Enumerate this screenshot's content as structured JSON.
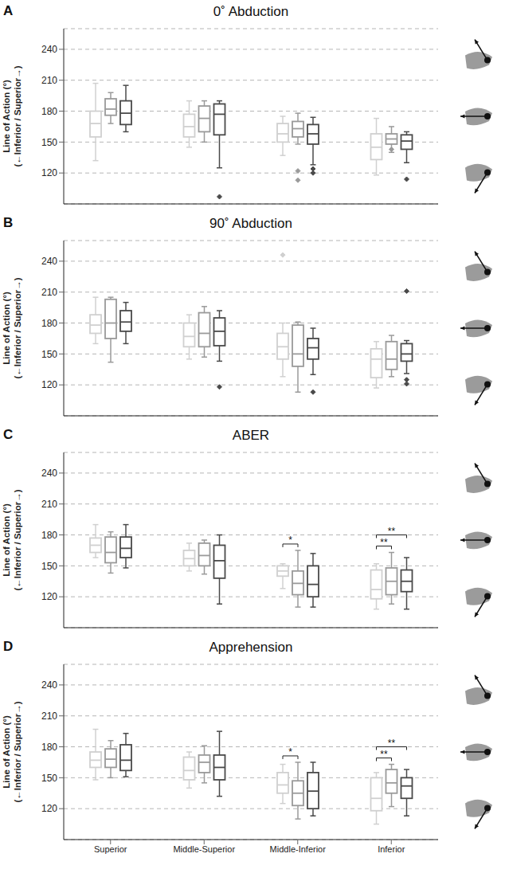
{
  "chart_data": [
    {
      "type": "box",
      "panel": "A",
      "title": "0˚ Abduction",
      "ylabel": [
        "Line of Action (°)",
        "(←Inferior / Superior→)"
      ],
      "categories": [
        "Superior",
        "Middle-Superior",
        "Middle-Inferior",
        "Inferior"
      ],
      "ylim": [
        90,
        260
      ],
      "yticks": [
        120,
        150,
        180,
        210,
        240
      ],
      "grid": true,
      "tick_labels": "y",
      "series": [
        {
          "color": "#d0d0d0",
          "values": [
            {
              "min": 132,
              "q1": 155,
              "median": 168,
              "q3": 180,
              "max": 207,
              "outliers": []
            },
            {
              "min": 145,
              "q1": 155,
              "median": 165,
              "q3": 177,
              "max": 190,
              "outliers": []
            },
            {
              "min": 137,
              "q1": 150,
              "median": 158,
              "q3": 168,
              "max": 175,
              "outliers": []
            },
            {
              "min": 118,
              "q1": 133,
              "median": 145,
              "q3": 158,
              "max": 173,
              "outliers": []
            }
          ]
        },
        {
          "color": "#9a9a9a",
          "values": [
            {
              "min": 168,
              "q1": 176,
              "median": 182,
              "q3": 192,
              "max": 198,
              "outliers": []
            },
            {
              "min": 150,
              "q1": 160,
              "median": 173,
              "q3": 185,
              "max": 190,
              "outliers": []
            },
            {
              "min": 148,
              "q1": 155,
              "median": 163,
              "q3": 170,
              "max": 178,
              "outliers": [
                113,
                122
              ]
            },
            {
              "min": 140,
              "q1": 148,
              "median": 153,
              "q3": 158,
              "max": 165,
              "outliers": [
                143
              ]
            }
          ]
        },
        {
          "color": "#4a4a4a",
          "values": [
            {
              "min": 160,
              "q1": 167,
              "median": 178,
              "q3": 190,
              "max": 205,
              "outliers": []
            },
            {
              "min": 125,
              "q1": 157,
              "median": 177,
              "q3": 187,
              "max": 190,
              "outliers": [
                97
              ]
            },
            {
              "min": 128,
              "q1": 148,
              "median": 158,
              "q3": 167,
              "max": 174,
              "outliers": [
                124,
                120
              ]
            },
            {
              "min": 130,
              "q1": 143,
              "median": 151,
              "q3": 157,
              "max": 160,
              "outliers": [
                114
              ]
            }
          ]
        }
      ],
      "annotations": []
    },
    {
      "type": "box",
      "panel": "B",
      "title": "90˚ Abduction",
      "ylabel": [
        "Line of Action (°)",
        "(←Inferior / Superior→)"
      ],
      "categories": [
        "Superior",
        "Middle-Superior",
        "Middle-Inferior",
        "Inferior"
      ],
      "ylim": [
        90,
        260
      ],
      "yticks": [
        120,
        150,
        180,
        210,
        240
      ],
      "grid": true,
      "tick_labels": "y",
      "series": [
        {
          "color": "#d0d0d0",
          "values": [
            {
              "min": 160,
              "q1": 170,
              "median": 178,
              "q3": 188,
              "max": 205,
              "outliers": []
            },
            {
              "min": 145,
              "q1": 157,
              "median": 167,
              "q3": 180,
              "max": 188,
              "outliers": []
            },
            {
              "min": 128,
              "q1": 145,
              "median": 157,
              "q3": 170,
              "max": 180,
              "outliers": [
                246
              ]
            },
            {
              "min": 117,
              "q1": 127,
              "median": 145,
              "q3": 155,
              "max": 162,
              "outliers": []
            }
          ]
        },
        {
          "color": "#9a9a9a",
          "values": [
            {
              "min": 142,
              "q1": 165,
              "median": 180,
              "q3": 203,
              "max": 205,
              "outliers": []
            },
            {
              "min": 147,
              "q1": 157,
              "median": 170,
              "q3": 190,
              "max": 196,
              "outliers": []
            },
            {
              "min": 113,
              "q1": 138,
              "median": 150,
              "q3": 178,
              "max": 181,
              "outliers": []
            },
            {
              "min": 128,
              "q1": 135,
              "median": 145,
              "q3": 162,
              "max": 168,
              "outliers": []
            }
          ]
        },
        {
          "color": "#4a4a4a",
          "values": [
            {
              "min": 160,
              "q1": 172,
              "median": 181,
              "q3": 192,
              "max": 200,
              "outliers": []
            },
            {
              "min": 143,
              "q1": 158,
              "median": 172,
              "q3": 185,
              "max": 192,
              "outliers": [
                118
              ]
            },
            {
              "min": 130,
              "q1": 145,
              "median": 156,
              "q3": 165,
              "max": 175,
              "outliers": [
                113
              ]
            },
            {
              "min": 131,
              "q1": 143,
              "median": 150,
              "q3": 160,
              "max": 163,
              "outliers": [
                211,
                125,
                121
              ]
            }
          ]
        }
      ],
      "annotations": []
    },
    {
      "type": "box",
      "panel": "C",
      "title": "ABER",
      "ylabel": [
        "Line of Action (°)",
        "(←Inferior / Superior→)"
      ],
      "categories": [
        "Superior",
        "Middle-Superior",
        "Middle-Inferior",
        "Inferior"
      ],
      "ylim": [
        90,
        260
      ],
      "yticks": [
        120,
        150,
        180,
        210,
        240
      ],
      "grid": true,
      "tick_labels": "y",
      "series": [
        {
          "color": "#d0d0d0",
          "values": [
            {
              "min": 158,
              "q1": 163,
              "median": 170,
              "q3": 177,
              "max": 190,
              "outliers": []
            },
            {
              "min": 145,
              "q1": 150,
              "median": 157,
              "q3": 165,
              "max": 172,
              "outliers": []
            },
            {
              "min": 128,
              "q1": 140,
              "median": 145,
              "q3": 150,
              "max": 152,
              "outliers": []
            },
            {
              "min": 108,
              "q1": 118,
              "median": 127,
              "q3": 146,
              "max": 152,
              "outliers": []
            }
          ]
        },
        {
          "color": "#9a9a9a",
          "values": [
            {
              "min": 143,
              "q1": 153,
              "median": 163,
              "q3": 178,
              "max": 183,
              "outliers": []
            },
            {
              "min": 142,
              "q1": 150,
              "median": 160,
              "q3": 172,
              "max": 175,
              "outliers": []
            },
            {
              "min": 110,
              "q1": 122,
              "median": 133,
              "q3": 145,
              "max": 165,
              "outliers": []
            },
            {
              "min": 113,
              "q1": 122,
              "median": 135,
              "q3": 148,
              "max": 163,
              "outliers": []
            }
          ]
        },
        {
          "color": "#4a4a4a",
          "values": [
            {
              "min": 148,
              "q1": 158,
              "median": 167,
              "q3": 178,
              "max": 190,
              "outliers": []
            },
            {
              "min": 113,
              "q1": 138,
              "median": 155,
              "q3": 170,
              "max": 180,
              "outliers": []
            },
            {
              "min": 110,
              "q1": 120,
              "median": 132,
              "q3": 150,
              "max": 162,
              "outliers": []
            },
            {
              "min": 108,
              "q1": 125,
              "median": 135,
              "q3": 146,
              "max": 158,
              "outliers": []
            }
          ]
        }
      ],
      "annotations": [
        {
          "text": "*",
          "category": "Middle-Inferior",
          "between": [
            0,
            1
          ]
        },
        {
          "text": "**",
          "category": "Inferior",
          "between": [
            0,
            1
          ]
        },
        {
          "text": "**",
          "category": "Inferior",
          "between": [
            0,
            2
          ]
        }
      ]
    },
    {
      "type": "box",
      "panel": "D",
      "title": "Apprehension",
      "ylabel": [
        "Line of Action (°)",
        "(←Inferior / Superior→)"
      ],
      "categories": [
        "Superior",
        "Middle-Superior",
        "Middle-Inferior",
        "Inferior"
      ],
      "ylim": [
        90,
        260
      ],
      "yticks": [
        120,
        150,
        180,
        210,
        240
      ],
      "grid": true,
      "series": [
        {
          "color": "#d0d0d0",
          "values": [
            {
              "min": 148,
              "q1": 160,
              "median": 167,
              "q3": 175,
              "max": 197,
              "outliers": []
            },
            {
              "min": 140,
              "q1": 148,
              "median": 157,
              "q3": 170,
              "max": 175,
              "outliers": []
            },
            {
              "min": 125,
              "q1": 135,
              "median": 143,
              "q3": 155,
              "max": 163,
              "outliers": []
            },
            {
              "min": 105,
              "q1": 118,
              "median": 130,
              "q3": 150,
              "max": 155,
              "outliers": []
            }
          ]
        },
        {
          "color": "#9a9a9a",
          "values": [
            {
              "min": 150,
              "q1": 160,
              "median": 168,
              "q3": 178,
              "max": 186,
              "outliers": []
            },
            {
              "min": 145,
              "q1": 155,
              "median": 165,
              "q3": 172,
              "max": 181,
              "outliers": []
            },
            {
              "min": 110,
              "q1": 123,
              "median": 135,
              "q3": 147,
              "max": 165,
              "outliers": []
            },
            {
              "min": 122,
              "q1": 135,
              "median": 145,
              "q3": 158,
              "max": 163,
              "outliers": []
            }
          ]
        },
        {
          "color": "#4a4a4a",
          "values": [
            {
              "min": 151,
              "q1": 157,
              "median": 167,
              "q3": 182,
              "max": 193,
              "outliers": []
            },
            {
              "min": 132,
              "q1": 148,
              "median": 160,
              "q3": 172,
              "max": 195,
              "outliers": []
            },
            {
              "min": 113,
              "q1": 120,
              "median": 137,
              "q3": 155,
              "max": 165,
              "outliers": []
            },
            {
              "min": 113,
              "q1": 130,
              "median": 142,
              "q3": 150,
              "max": 158,
              "outliers": []
            }
          ]
        }
      ],
      "annotations": [
        {
          "text": "*",
          "category": "Middle-Inferior",
          "between": [
            0,
            1
          ]
        },
        {
          "text": "**",
          "category": "Inferior",
          "between": [
            0,
            1
          ]
        },
        {
          "text": "**",
          "category": "Inferior",
          "between": [
            0,
            2
          ]
        }
      ]
    }
  ]
}
